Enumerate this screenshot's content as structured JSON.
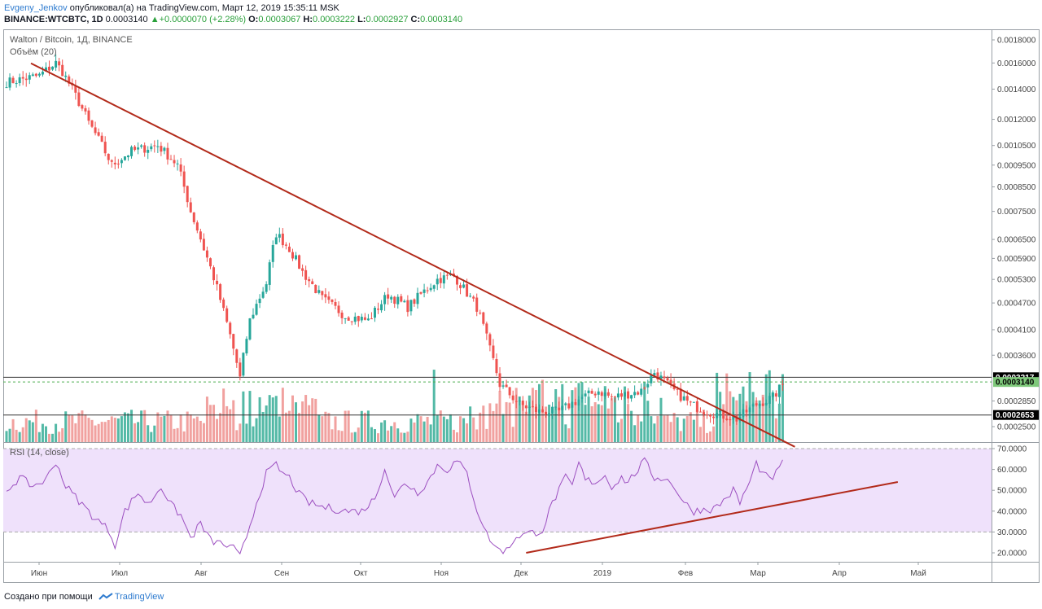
{
  "header": {
    "author": "Evgeny_Jenkov",
    "published_text": "опубликовал(а) на TradingView.com, Март 12, 2019 15:35:11 MSK",
    "symbol": "BINANCE:WTCBTC, 1D",
    "last": "0.0003140",
    "change": "+0.0000070 (+2.28%)",
    "o_label": "O:",
    "o_value": "0.0003067",
    "h_label": "H:",
    "h_value": "0.0003222",
    "l_label": "L:",
    "l_value": "0.0002927",
    "c_label": "C:",
    "c_value": "0.0003140"
  },
  "legend": {
    "title": "Walton / Bitcoin, 1Д, BINANCE",
    "volume": "Объём (20)",
    "rsi": "RSI (14, close)"
  },
  "footer": {
    "created_with": "Создано при помощи",
    "brand": "TradingView"
  },
  "colors": {
    "up": "#53b9a6",
    "down": "#f1a19f",
    "candle_up": "#26a69a",
    "candle_down": "#ef5350",
    "trendline": "#b22a1a",
    "rsi_line": "#9c4fc0",
    "rsi_band": "#efe1fb",
    "price_tag": "#000000",
    "price_tag_last": "#7ec87a"
  },
  "chart_data": [
    {
      "type": "candlestick",
      "title": "Walton / Bitcoin, 1Д, BINANCE",
      "x_ticks": [
        "Июн",
        "Июл",
        "Авг",
        "Сен",
        "Окт",
        "Ноя",
        "Дек",
        "2019",
        "Фев",
        "Мар",
        "Апр",
        "Май"
      ],
      "y_ticks": [
        "0.0018000",
        "0.0016000",
        "0.0014000",
        "0.0012000",
        "0.0010500",
        "0.0009500",
        "0.0008500",
        "0.0007500",
        "0.0006500",
        "0.0005900",
        "0.0005300",
        "0.0004700",
        "0.0004100",
        "0.0003600",
        "0.0002850",
        "0.0002500"
      ],
      "y_scale": "log",
      "close_anchors": [
        [
          0,
          0.00145
        ],
        [
          10,
          0.0015
        ],
        [
          15,
          0.0016
        ],
        [
          17,
          0.00153
        ],
        [
          22,
          0.00131
        ],
        [
          25,
          0.00118
        ],
        [
          32,
          0.00095
        ],
        [
          38,
          0.00102
        ],
        [
          46,
          0.00105
        ],
        [
          52,
          0.00095
        ],
        [
          56,
          0.00075
        ],
        [
          60,
          0.00062
        ],
        [
          66,
          0.00045
        ],
        [
          71,
          0.00032
        ],
        [
          74,
          0.00043
        ],
        [
          79,
          0.00052
        ],
        [
          82,
          0.00067
        ],
        [
          86,
          0.00062
        ],
        [
          90,
          0.00055
        ],
        [
          96,
          0.00048
        ],
        [
          103,
          0.00044
        ],
        [
          110,
          0.00043
        ],
        [
          116,
          0.00049
        ],
        [
          122,
          0.00046
        ],
        [
          131,
          0.00053
        ],
        [
          136,
          0.00054
        ],
        [
          143,
          0.00046
        ],
        [
          147,
          0.00037
        ],
        [
          150,
          0.00031
        ],
        [
          156,
          0.00028
        ],
        [
          162,
          0.00027
        ],
        [
          168,
          0.00027
        ],
        [
          175,
          0.00029
        ],
        [
          180,
          0.0003
        ],
        [
          184,
          0.00029
        ],
        [
          193,
          0.0003
        ],
        [
          197,
          0.00033
        ],
        [
          203,
          0.0003
        ],
        [
          208,
          0.00028
        ],
        [
          213,
          0.00027
        ],
        [
          222,
          0.00026
        ],
        [
          228,
          0.00028
        ],
        [
          233,
          0.00029
        ],
        [
          236,
          0.00031
        ]
      ],
      "series": [
        {
          "name": "",
          "points": [
            [
              0,
              0.0017
            ],
            [
              236,
              0.00024
            ]
          ]
        }
      ],
      "horizontal_levels": [
        "0.0003217",
        "0.0003140",
        "0.0002653"
      ],
      "last_value": "0.0003140"
    },
    {
      "type": "bar",
      "title": "Объём (20)",
      "description": "volume bars, colored by candle direction"
    },
    {
      "type": "line",
      "title": "RSI (14, close)",
      "y_ticks": [
        "70.0000",
        "60.0000",
        "50.0000",
        "40.0000",
        "30.0000",
        "20.0000"
      ],
      "ylim": [
        15,
        75
      ],
      "band": [
        30,
        70
      ],
      "rsi_anchors": [
        [
          0,
          50
        ],
        [
          4,
          56
        ],
        [
          8,
          52
        ],
        [
          12,
          55
        ],
        [
          15,
          64
        ],
        [
          18,
          52
        ],
        [
          22,
          45
        ],
        [
          26,
          38
        ],
        [
          31,
          31
        ],
        [
          33,
          24
        ],
        [
          36,
          40
        ],
        [
          40,
          49
        ],
        [
          43,
          43
        ],
        [
          47,
          52
        ],
        [
          50,
          43
        ],
        [
          53,
          38
        ],
        [
          56,
          27
        ],
        [
          59,
          34
        ],
        [
          62,
          26
        ],
        [
          66,
          24
        ],
        [
          69,
          22
        ],
        [
          71,
          18
        ],
        [
          73,
          28
        ],
        [
          76,
          44
        ],
        [
          79,
          58
        ],
        [
          82,
          62
        ],
        [
          84,
          58
        ],
        [
          86,
          56
        ],
        [
          89,
          48
        ],
        [
          92,
          44
        ],
        [
          96,
          42
        ],
        [
          100,
          41
        ],
        [
          104,
          40
        ],
        [
          108,
          40
        ],
        [
          112,
          46
        ],
        [
          115,
          61
        ],
        [
          118,
          46
        ],
        [
          121,
          54
        ],
        [
          125,
          49
        ],
        [
          128,
          54
        ],
        [
          131,
          62
        ],
        [
          134,
          60
        ],
        [
          137,
          64
        ],
        [
          140,
          58
        ],
        [
          143,
          41
        ],
        [
          146,
          29
        ],
        [
          149,
          22
        ],
        [
          152,
          21
        ],
        [
          155,
          28
        ],
        [
          158,
          29
        ],
        [
          161,
          30
        ],
        [
          163,
          31
        ],
        [
          166,
          44
        ],
        [
          170,
          56
        ],
        [
          172,
          52
        ],
        [
          174,
          63
        ],
        [
          176,
          55
        ],
        [
          179,
          54
        ],
        [
          182,
          57
        ],
        [
          184,
          52
        ],
        [
          187,
          56
        ],
        [
          189,
          54
        ],
        [
          191,
          58
        ],
        [
          194,
          64
        ],
        [
          197,
          56
        ],
        [
          200,
          56
        ],
        [
          203,
          52
        ],
        [
          206,
          44
        ],
        [
          209,
          40
        ],
        [
          212,
          41
        ],
        [
          215,
          41
        ],
        [
          218,
          45
        ],
        [
          221,
          50
        ],
        [
          223,
          44
        ],
        [
          226,
          54
        ],
        [
          228,
          63
        ],
        [
          230,
          58
        ],
        [
          232,
          55
        ],
        [
          234,
          58
        ],
        [
          236,
          63
        ]
      ],
      "series": [
        {
          "name": "",
          "points": [
            [
              158,
              20
            ],
            [
              271,
              54
            ]
          ]
        }
      ]
    }
  ]
}
